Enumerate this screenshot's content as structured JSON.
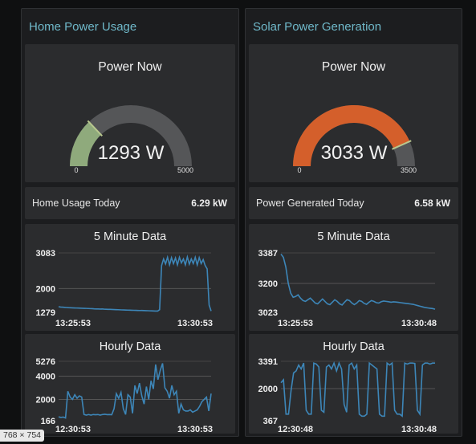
{
  "home": {
    "group_title": "Home Power Usage",
    "gauge": {
      "title": "Power Now",
      "value": 1293,
      "value_text": "1293 W",
      "min": "0",
      "max": "5000",
      "max_num": 5000,
      "color": "#8faa7c"
    },
    "today": {
      "label": "Home Usage Today",
      "value": "6.29 kW"
    },
    "chart_data": [
      {
        "type": "line",
        "title": "5 Minute Data",
        "yticks": [
          "3083",
          "2000",
          "1279"
        ],
        "ytick_values": [
          3083,
          2000,
          1279
        ],
        "ylim": [
          1279,
          3083
        ],
        "xticks": [
          "13:25:53",
          "13:30:53"
        ],
        "grid": true,
        "color": "#3d86b8",
        "values": [
          1450,
          1440,
          1435,
          1430,
          1425,
          1420,
          1418,
          1415,
          1412,
          1410,
          1408,
          1405,
          1402,
          1400,
          1398,
          1395,
          1392,
          1390,
          1385,
          1382,
          1380,
          1378,
          1380,
          1375,
          1372,
          1370,
          1368,
          1365,
          1363,
          1360,
          1358,
          1355,
          1352,
          1350,
          1348,
          1346,
          1344,
          1342,
          1340,
          1338,
          1336,
          1334,
          1335,
          1332,
          1330,
          1328,
          1325,
          1322,
          1320,
          1318,
          1316,
          1360,
          2700,
          2900,
          2750,
          2950,
          2720,
          2940,
          2760,
          2930,
          2720,
          2950,
          2780,
          2900,
          2720,
          2960,
          2740,
          2900,
          2760,
          2950,
          2720,
          2940,
          2760,
          2880,
          2700,
          2600,
          1500,
          1320
        ]
      },
      {
        "type": "line",
        "title": "Hourly Data",
        "yticks": [
          "5276",
          "4000",
          "2000",
          "166"
        ],
        "ytick_values": [
          5276,
          4000,
          2000,
          166
        ],
        "ylim": [
          166,
          5276
        ],
        "xticks": [
          "12:30:53",
          "13:30:53"
        ],
        "grid": true,
        "color": "#3d86b8",
        "values": [
          500,
          450,
          480,
          400,
          2700,
          2200,
          2000,
          2400,
          2100,
          2300,
          2200,
          700,
          650,
          700,
          650,
          700,
          680,
          700,
          650,
          700,
          720,
          690,
          700,
          680,
          1200,
          2500,
          2100,
          2600,
          1200,
          700,
          2400,
          2200,
          800,
          3200,
          2500,
          3400,
          2300,
          1600,
          3100,
          2000,
          3600,
          2900,
          5000,
          3700,
          4500,
          5100,
          3000,
          2700,
          2100,
          3200,
          2400,
          2700,
          800,
          1600,
          1100,
          1000,
          1000,
          1100,
          900,
          1000,
          1100,
          1400,
          1800,
          2000,
          2200,
          1000,
          2500
        ]
      }
    ]
  },
  "solar": {
    "group_title": "Solar Power Generation",
    "gauge": {
      "title": "Power Now",
      "value": 3033,
      "value_text": "3033 W",
      "min": "0",
      "max": "3500",
      "max_num": 3500,
      "color": "#d45f2b"
    },
    "today": {
      "label": "Power Generated Today",
      "value": "6.58 kW"
    },
    "chart_data": [
      {
        "type": "line",
        "title": "5 Minute Data",
        "yticks": [
          "3387",
          "3200",
          "3023"
        ],
        "ytick_values": [
          3387,
          3200,
          3023
        ],
        "ylim": [
          3023,
          3387
        ],
        "xticks": [
          "13:25:53",
          "13:30:48"
        ],
        "grid": true,
        "color": "#3d86b8",
        "values": [
          3380,
          3360,
          3300,
          3200,
          3140,
          3115,
          3120,
          3130,
          3110,
          3095,
          3090,
          3100,
          3110,
          3095,
          3080,
          3075,
          3090,
          3105,
          3090,
          3075,
          3070,
          3085,
          3100,
          3090,
          3075,
          3068,
          3085,
          3100,
          3095,
          3080,
          3070,
          3080,
          3095,
          3090,
          3078,
          3072,
          3085,
          3095,
          3090,
          3082,
          3080,
          3088,
          3092,
          3090,
          3088,
          3085,
          3087,
          3086,
          3084,
          3082,
          3080,
          3078,
          3076,
          3074,
          3072,
          3068,
          3064,
          3060,
          3056,
          3052,
          3050,
          3048,
          3046,
          3042
        ]
      },
      {
        "type": "line",
        "title": "Hourly Data",
        "yticks": [
          "3391",
          "2000",
          "367"
        ],
        "ytick_values": [
          3391,
          2000,
          367
        ],
        "ylim": [
          367,
          3391
        ],
        "xticks": [
          "12:30:48",
          "13:30:48"
        ],
        "grid": true,
        "color": "#3d86b8",
        "values": [
          2300,
          2450,
          700,
          700,
          1900,
          2800,
          2900,
          3200,
          3000,
          3300,
          900,
          700,
          700,
          3300,
          3250,
          3100,
          900,
          800,
          3100,
          3200,
          3000,
          3300,
          2900,
          3300,
          3000,
          1200,
          800,
          3200,
          3300,
          3000,
          3200,
          700,
          600,
          600,
          700,
          3300,
          3200,
          3100,
          3000,
          700,
          600,
          600,
          3300,
          3200,
          3300,
          900,
          700,
          700,
          600,
          3300,
          3250,
          3300,
          3300,
          3280,
          900,
          700,
          3200,
          3300,
          3300,
          3250,
          3300,
          3300
        ]
      }
    ]
  },
  "badge": {
    "text": "768 × 754"
  }
}
